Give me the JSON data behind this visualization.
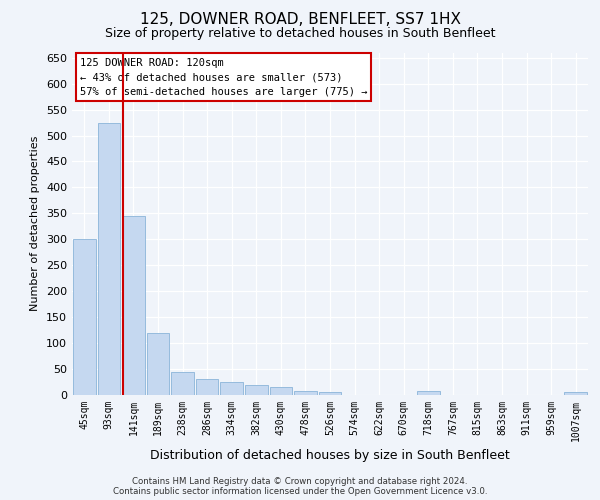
{
  "title": "125, DOWNER ROAD, BENFLEET, SS7 1HX",
  "subtitle": "Size of property relative to detached houses in South Benfleet",
  "xlabel": "Distribution of detached houses by size in South Benfleet",
  "ylabel": "Number of detached properties",
  "bins": [
    45,
    93,
    141,
    189,
    238,
    286,
    334,
    382,
    430,
    478,
    526,
    574,
    622,
    670,
    718,
    767,
    815,
    863,
    911,
    959,
    1007
  ],
  "counts": [
    300,
    525,
    345,
    120,
    45,
    30,
    25,
    20,
    15,
    8,
    5,
    0,
    0,
    0,
    8,
    0,
    0,
    0,
    0,
    0,
    5
  ],
  "bar_color": "#c5d8f0",
  "bar_edge_color": "#8ab4d9",
  "red_line_color": "#cc0000",
  "ylim": [
    0,
    660
  ],
  "yticks": [
    0,
    50,
    100,
    150,
    200,
    250,
    300,
    350,
    400,
    450,
    500,
    550,
    600,
    650
  ],
  "annotation_title": "125 DOWNER ROAD: 120sqm",
  "annotation_line1": "← 43% of detached houses are smaller (573)",
  "annotation_line2": "57% of semi-detached houses are larger (775) →",
  "annotation_box_color": "#ffffff",
  "annotation_box_edge": "#cc0000",
  "footer": "Contains HM Land Registry data © Crown copyright and database right 2024.\nContains public sector information licensed under the Open Government Licence v3.0.",
  "background_color": "#f0f4fa",
  "plot_background": "#f0f4fa",
  "grid_color": "#ffffff",
  "title_fontsize": 11,
  "subtitle_fontsize": 9,
  "ylabel_fontsize": 8,
  "xlabel_fontsize": 9
}
